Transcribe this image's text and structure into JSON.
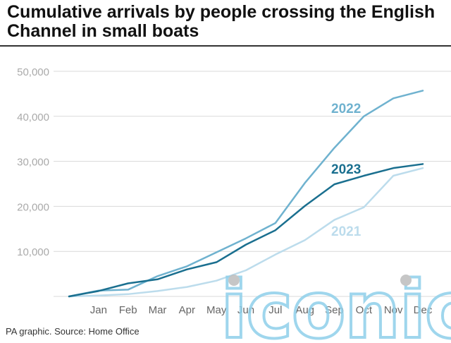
{
  "title": "Cumulative arrivals by people crossing the English Channel in small boats",
  "source": "PA graphic. Source: Home Office",
  "watermark": "iconic",
  "colors": {
    "series_2022": "#6fb2cf",
    "series_2023": "#1a6f8f",
    "series_2021": "#bcdcec",
    "grid": "#d9d9d9",
    "watermark": "#8fd0ea"
  },
  "chart_data": {
    "type": "line",
    "title": "Cumulative arrivals by people crossing the English Channel in small boats",
    "xlabel": "",
    "ylabel": "",
    "categories": [
      "",
      "Jan",
      "Feb",
      "Mar",
      "Apr",
      "May",
      "Jun",
      "Jul",
      "Aug",
      "Sep",
      "Oct",
      "Nov",
      "Dec"
    ],
    "yticks": [
      "50,000",
      "40,000",
      "30,000",
      "20,000",
      "10,000"
    ],
    "ytick_values": [
      50000,
      40000,
      30000,
      20000,
      10000
    ],
    "ylim": [
      0,
      50000
    ],
    "grid": true,
    "legend": "inline-labels",
    "series": [
      {
        "name": "2022",
        "values": [
          0,
          1300,
          1500,
          4500,
          6700,
          9800,
          12900,
          16300,
          25200,
          33000,
          40000,
          44000,
          45700
        ]
      },
      {
        "name": "2023",
        "values": [
          0,
          1200,
          2900,
          3800,
          6000,
          7600,
          11500,
          14700,
          20100,
          24900,
          26800,
          28500,
          29400
        ]
      },
      {
        "name": "2021",
        "values": [
          0,
          200,
          500,
          1200,
          2100,
          3500,
          5800,
          9300,
          12500,
          17000,
          19800,
          26800,
          28500
        ]
      }
    ]
  }
}
